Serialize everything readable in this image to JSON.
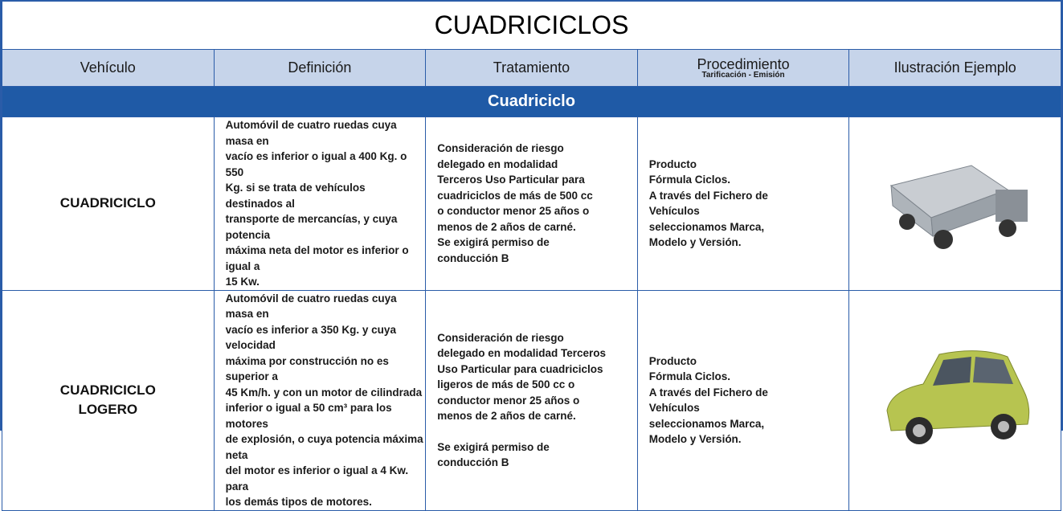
{
  "title": "CUADRICICLOS",
  "header": [
    {
      "label": "Vehículo"
    },
    {
      "label": "Definición"
    },
    {
      "label": "Tratamiento"
    },
    {
      "label": "Procedimiento",
      "sublabel": "Tarificación - Emisión"
    },
    {
      "label": "Ilustración Ejemplo"
    }
  ],
  "section": "Cuadriciclo",
  "rows": [
    {
      "vehicle": [
        "CUADRICICLO"
      ],
      "definition": [
        [
          "Automóvil de cuatro ruedas cuya masa en",
          "vacío es inferior o igual a 400 Kg. o 550",
          "Kg. si se trata de vehículos destinados al",
          "transporte de mercancías, y cuya potencia",
          "máxima neta del motor es inferior o igual a",
          "15 Kw."
        ]
      ],
      "treatment": [
        [
          "Consideración de riesgo",
          "delegado en modalidad",
          "Terceros Uso Particular para",
          "cuadriciclos de más de 500 cc",
          "o conductor menor 25 años o",
          "menos de 2 años de carné.",
          "Se exigirá permiso de",
          "conducción B"
        ]
      ],
      "procedure": [
        [
          "Producto",
          "Fórmula Ciclos.",
          "A través del Fichero de",
          "Vehículos",
          "seleccionamos Marca,",
          "Modelo y Versión."
        ]
      ]
    },
    {
      "vehicle": [
        "CUADRICICLO",
        "LOGERO"
      ],
      "definition": [
        [
          "Automóvil de cuatro ruedas cuya masa en",
          "vacío es inferior a 350 Kg. y cuya velocidad",
          "máxima por construcción no es superior a",
          "45 Km/h. y con un motor de cilindrada",
          "inferior o igual a 50 cm³ para los motores",
          "de explosión, o cuya potencia máxima neta",
          "del motor es inferior o igual a 4 Kw. para",
          "los demás tipos de motores."
        ]
      ],
      "treatment": [
        [
          "Consideración de riesgo",
          "delegado en modalidad Terceros",
          "Uso Particular para cuadriciclos",
          "ligeros de más de 500 cc o",
          "conductor menor 25 años o",
          "menos de 2 años de carné."
        ],
        [
          "Se exigirá permiso de",
          "conducción B"
        ]
      ],
      "procedure": [
        [
          "Producto",
          "Fórmula Ciclos.",
          "A través del Fichero de",
          "Vehículos",
          "seleccionamos Marca,",
          "Modelo y Versión."
        ]
      ]
    }
  ]
}
